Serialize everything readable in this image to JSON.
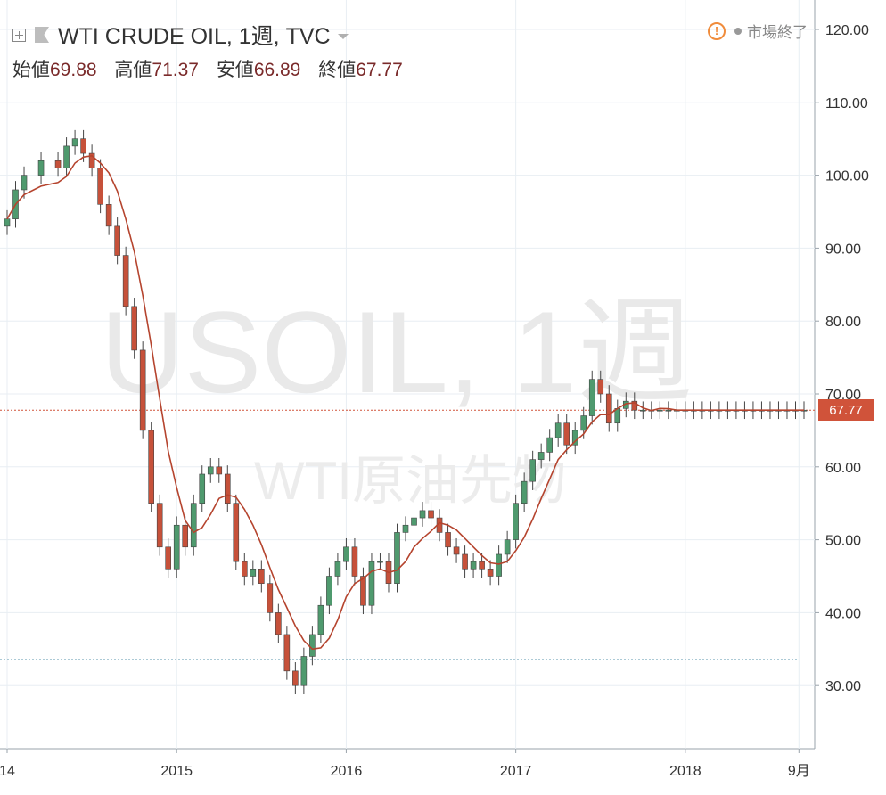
{
  "header": {
    "symbol": "WTI CRUDE OIL, 1週, TVC",
    "ohlc": [
      {
        "label": "始値",
        "value": "69.88"
      },
      {
        "label": "高値",
        "value": "71.37"
      },
      {
        "label": "安値",
        "value": "66.89"
      },
      {
        "label": "終値",
        "value": "67.77"
      }
    ],
    "status_text": "市場終了",
    "status_icon": "exclamation-circle-icon"
  },
  "watermark": {
    "line1": "USOIL, 1週",
    "line2": "WTI原油先物"
  },
  "colors": {
    "up_body": "#4f9a6e",
    "down_body": "#c6513a",
    "wick": "#444444",
    "ma_line": "#b5442e",
    "price_tag": "#d0533a",
    "grid": "#e8eef3"
  },
  "chart_data": {
    "type": "candlestick",
    "title": "WTI CRUDE OIL, 1週, TVC",
    "interval": "1週",
    "last_price": "67.77",
    "ylim": [
      20,
      122
    ],
    "y_ticks": [
      "120.00",
      "110.00",
      "100.00",
      "90.00",
      "80.00",
      "70.00",
      "60.00",
      "50.00",
      "40.00",
      "30.00"
    ],
    "y_tick_values": [
      120,
      110,
      100,
      90,
      80,
      70,
      60,
      50,
      40,
      30
    ],
    "x_ticks": [
      "14",
      "2015",
      "2016",
      "2017",
      "2018",
      "9月"
    ],
    "x_tick_times": [
      2014.0,
      2015.0,
      2016.0,
      2017.0,
      2018.0,
      2018.67
    ],
    "xlim": [
      2014.0,
      2018.7
    ],
    "dotted_level": 33.6,
    "series": [
      {
        "name": "",
        "type": "close",
        "x": [
          2014.0,
          2014.05,
          2014.1,
          2014.2,
          2014.3,
          2014.35,
          2014.4,
          2014.45,
          2014.5,
          2014.55,
          2014.6,
          2014.65,
          2014.7,
          2014.75,
          2014.8,
          2014.85,
          2014.9,
          2014.95,
          2015.0,
          2015.05,
          2015.1,
          2015.15,
          2015.2,
          2015.25,
          2015.3,
          2015.35,
          2015.4,
          2015.45,
          2015.5,
          2015.55,
          2015.6,
          2015.65,
          2015.7,
          2015.75,
          2015.8,
          2015.85,
          2015.9,
          2015.95,
          2016.0,
          2016.05,
          2016.1,
          2016.15,
          2016.2,
          2016.25,
          2016.3,
          2016.35,
          2016.4,
          2016.45,
          2016.5,
          2016.55,
          2016.6,
          2016.65,
          2016.7,
          2016.75,
          2016.8,
          2016.85,
          2016.9,
          2016.95,
          2017.0,
          2017.05,
          2017.1,
          2017.15,
          2017.2,
          2017.25,
          2017.3,
          2017.35,
          2017.4,
          2017.45,
          2017.5,
          2017.55,
          2017.6,
          2017.65,
          2017.7,
          2017.75,
          2017.8,
          2017.85,
          2017.9,
          2017.95,
          2018.0,
          2018.05,
          2018.1,
          2018.15,
          2018.2,
          2018.25,
          2018.3,
          2018.35,
          2018.4,
          2018.45,
          2018.5,
          2018.55,
          2018.6,
          2018.65,
          2018.7
        ],
        "values": [
          94,
          98,
          100,
          102,
          101,
          104,
          105,
          103,
          101,
          96,
          93,
          89,
          82,
          76,
          65,
          55,
          49,
          46,
          52,
          49,
          55,
          59,
          60,
          59,
          55,
          47,
          45,
          46,
          44,
          40,
          37,
          32,
          30,
          34,
          37,
          41,
          45,
          47,
          49,
          45,
          41,
          47,
          47,
          44,
          51,
          52,
          53,
          54,
          53,
          51,
          49,
          48,
          46,
          47,
          46,
          45,
          48,
          50,
          55,
          58,
          61,
          62,
          64,
          66,
          63,
          65,
          67,
          72,
          70,
          66,
          68,
          69,
          67.77,
          67.77,
          67.77,
          67.77,
          67.77,
          67.77,
          67.77,
          67.77,
          67.77,
          67.77,
          67.77,
          67.77,
          67.77,
          67.77,
          67.77,
          67.77,
          67.77,
          67.77,
          67.77,
          67.77,
          67.77
        ]
      }
    ]
  }
}
